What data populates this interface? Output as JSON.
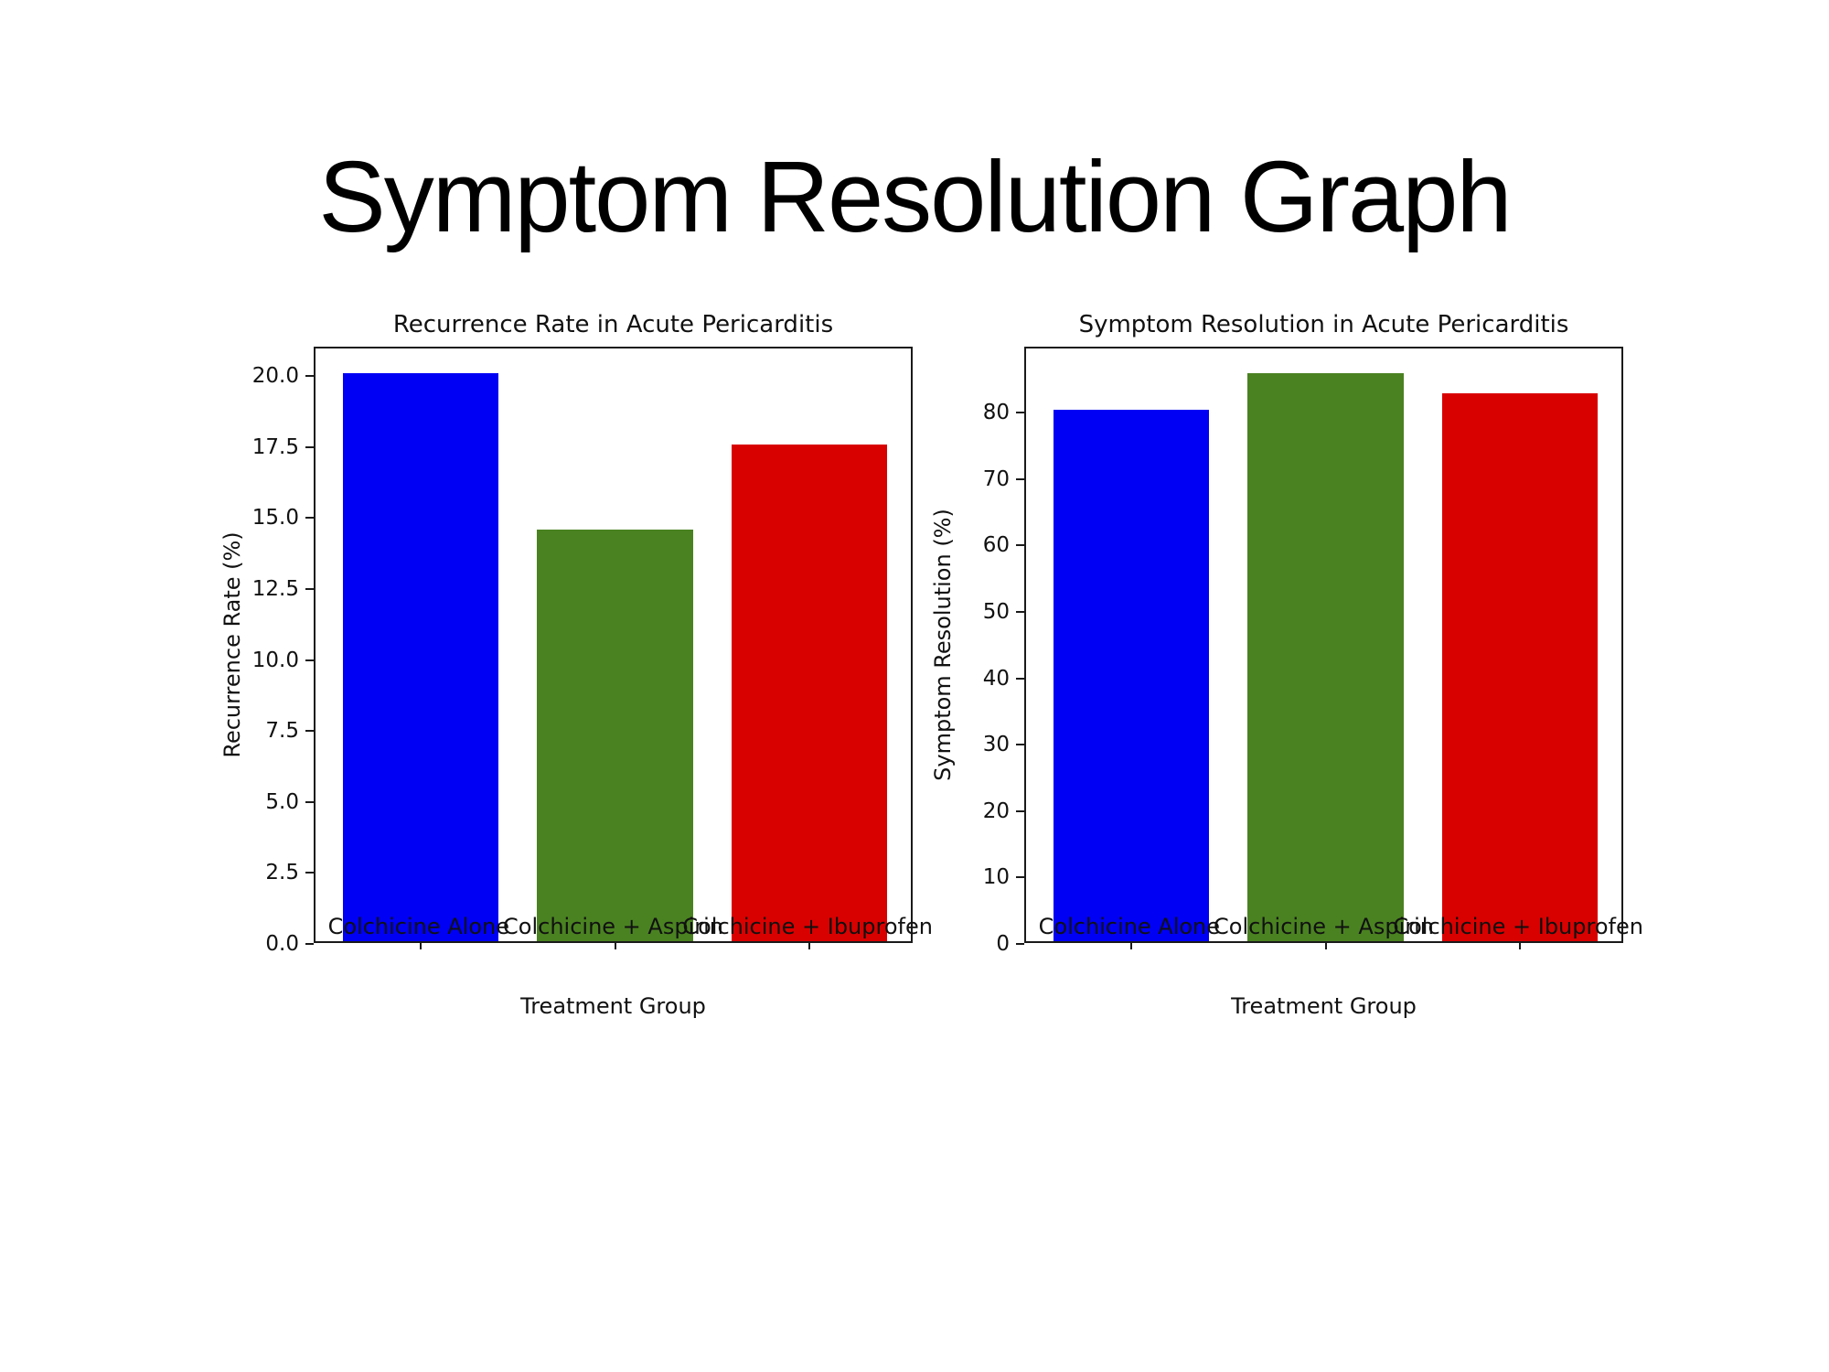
{
  "slide": {
    "title": "Symptom Resolution Graph",
    "background_color": "#ffffff",
    "text_color": "#000000"
  },
  "chart_data": [
    {
      "type": "bar",
      "title": "Recurrence Rate in Acute Pericarditis",
      "xlabel": "Treatment Group",
      "ylabel": "Recurrence Rate (%)",
      "categories": [
        "Colchicine Alone",
        "Colchicine + Aspirin",
        "Colchicine + Ibuprofen"
      ],
      "values": [
        20.0,
        14.5,
        17.5
      ],
      "bar_colors": [
        "#0000f5",
        "#4a8221",
        "#d90000"
      ],
      "ylim": [
        0,
        21
      ],
      "yticks": [
        0.0,
        2.5,
        5.0,
        7.5,
        10.0,
        12.5,
        15.0,
        17.5,
        20.0
      ],
      "ytick_labels": [
        "0.0",
        "2.5",
        "5.0",
        "7.5",
        "10.0",
        "12.5",
        "15.0",
        "17.5",
        "20.0"
      ],
      "grid": false,
      "legend": "none"
    },
    {
      "type": "bar",
      "title": "Symptom Resolution in Acute Pericarditis",
      "xlabel": "Treatment Group",
      "ylabel": "Symptom Resolution (%)",
      "categories": [
        "Colchicine Alone",
        "Colchicine + Aspirin",
        "Colchicine + Ibuprofen"
      ],
      "values": [
        80.0,
        85.5,
        82.5
      ],
      "bar_colors": [
        "#0000f5",
        "#4a8221",
        "#d90000"
      ],
      "ylim": [
        0,
        89.8
      ],
      "yticks": [
        0,
        10,
        20,
        30,
        40,
        50,
        60,
        70,
        80
      ],
      "ytick_labels": [
        "0",
        "10",
        "20",
        "30",
        "40",
        "50",
        "60",
        "70",
        "80"
      ],
      "grid": false,
      "legend": "none"
    }
  ]
}
